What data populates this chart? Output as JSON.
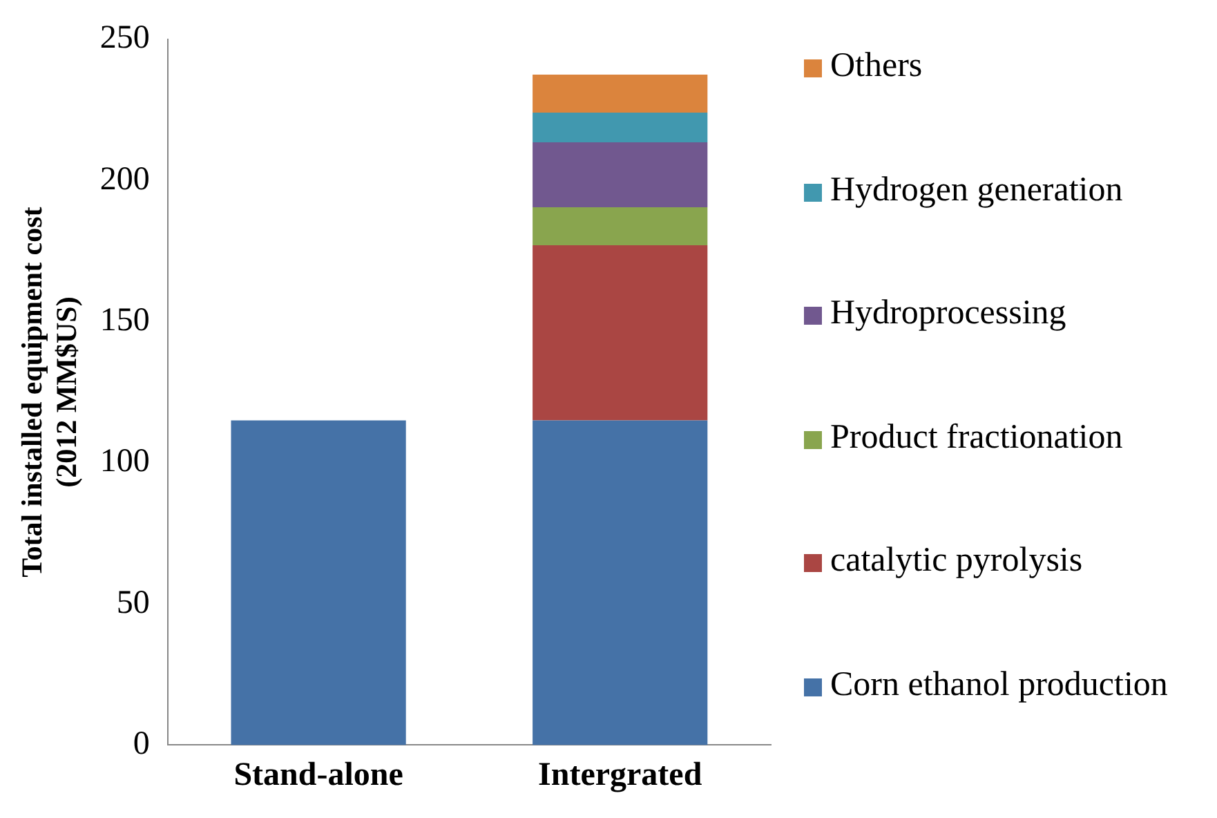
{
  "chart_data": {
    "type": "bar",
    "stacked": true,
    "ylabel": "Total installed equipment cost\n(2012 MM$US)",
    "categories": [
      "Stand-alone",
      "Intergrated"
    ],
    "series": [
      {
        "name": "Corn ethanol production",
        "color": "#4572a7",
        "values": [
          115,
          115
        ]
      },
      {
        "name": "catalytic pyrolysis",
        "color": "#aa4643",
        "values": [
          null,
          62
        ]
      },
      {
        "name": "Product fractionation",
        "color": "#89a54e",
        "values": [
          null,
          13.5
        ]
      },
      {
        "name": "Hydroprocessing",
        "color": "#71588f",
        "values": [
          null,
          23
        ]
      },
      {
        "name": "Hydrogen generation",
        "color": "#4198af",
        "values": [
          null,
          10.5
        ]
      },
      {
        "name": "Others",
        "color": "#db843d",
        "values": [
          null,
          13.5
        ]
      }
    ],
    "ylim": [
      0,
      250
    ],
    "yticks": [
      0,
      50,
      100,
      150,
      200,
      250
    ],
    "grid": false,
    "legend": "right"
  }
}
